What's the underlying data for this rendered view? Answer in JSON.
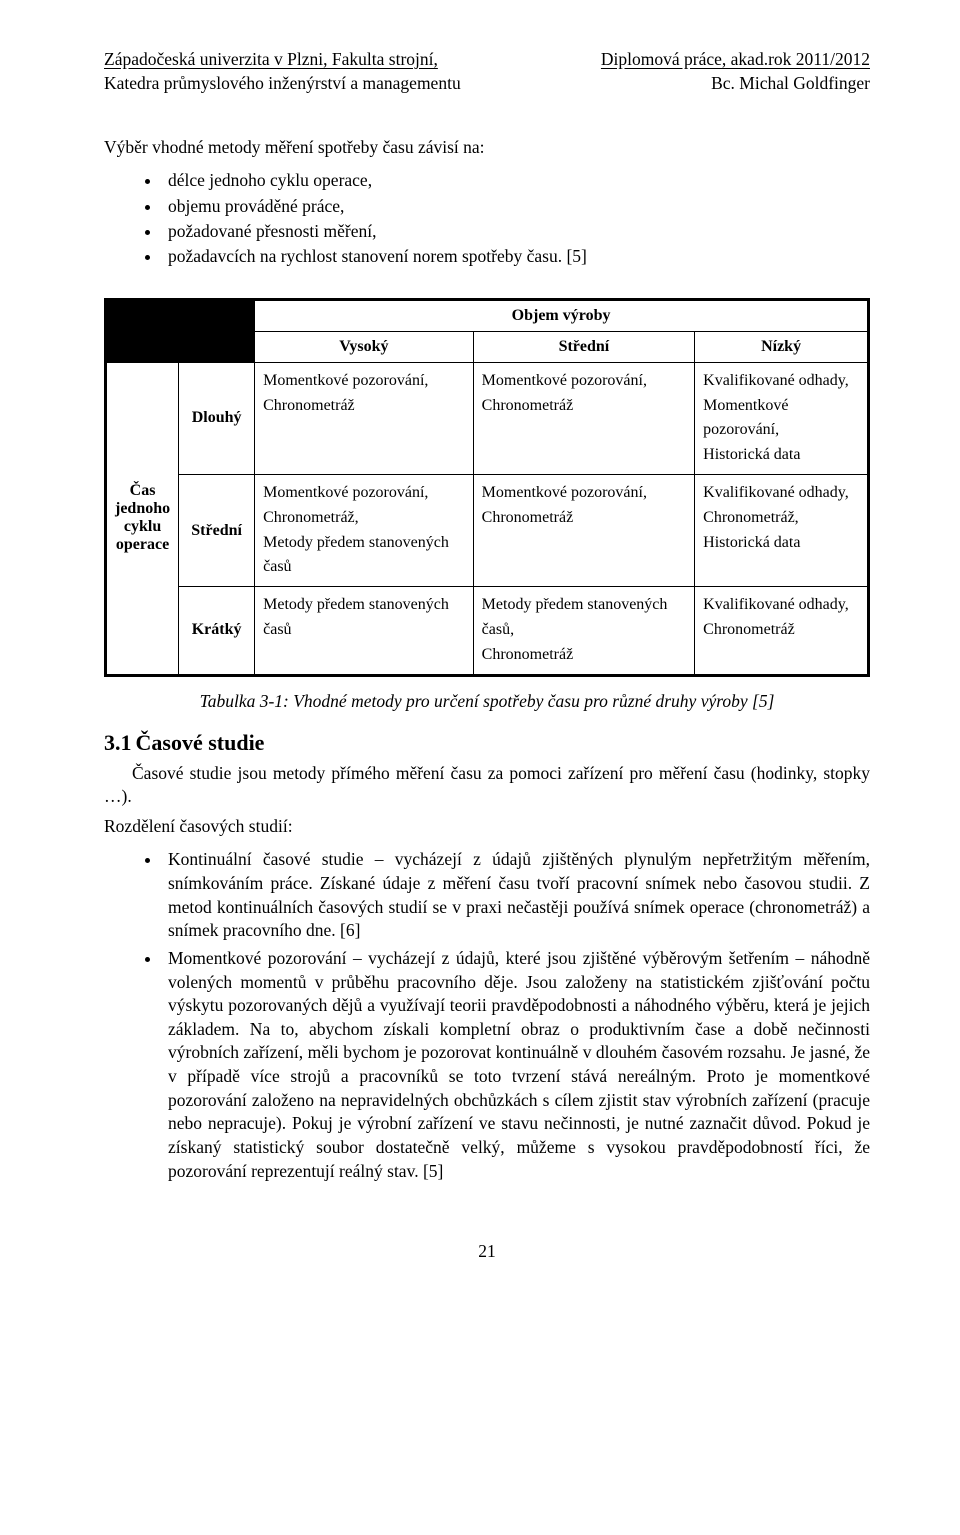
{
  "header": {
    "left1": "Západočeská univerzita v Plzni, Fakulta strojní,",
    "right1": "Diplomová práce, akad.rok 2011/2012",
    "left2": "Katedra průmyslového inženýrství a managementu",
    "right2": "Bc. Michal Goldfinger"
  },
  "intro": "Výběr vhodné metody měření spotřeby času závisí na:",
  "intro_bullets": [
    "délce jednoho cyklu operace,",
    "objemu prováděné práce,",
    "požadované přesnosti měření,",
    "požadavcích na rychlost stanovení norem spotřeby času. [5]"
  ],
  "table": {
    "super_header": "Objem výroby",
    "cols": [
      "Vysoký",
      "Střední",
      "Nízký"
    ],
    "row_super": "Čas jednoho cyklu operace",
    "rows": [
      {
        "label": "Dlouhý",
        "cells": [
          "Momentkové pozorování,\nChronometráž",
          "Momentkové pozorování,\nChronometráž",
          "Kvalifikované odhady,\nMomentkové pozorování,\nHistorická data"
        ]
      },
      {
        "label": "Střední",
        "cells": [
          "Momentkové pozorování,\nChronometráž,\nMetody předem stanovených časů",
          "Momentkové pozorování,\nChronometráž",
          "Kvalifikované odhady,\nChronometráž,\nHistorická data"
        ]
      },
      {
        "label": "Krátký",
        "cells": [
          "Metody předem stanovených časů",
          "Metody předem stanovených časů,\nChronometráž",
          "Kvalifikované odhady,\nChronometráž"
        ]
      }
    ]
  },
  "caption": "Tabulka 3-1: Vhodné metody pro určení spotřeby času pro různé druhy výroby [5]",
  "section": {
    "num": "3.1",
    "title": "Časové studie"
  },
  "p1": "Časové studie jsou metody přímého měření času za pomoci zařízení pro měření času (hodinky, stopky …).",
  "p2": "Rozdělení časových studií:",
  "studies": [
    "Kontinuální časové studie – vycházejí z údajů zjištěných plynulým nepřetržitým měřením, snímkováním práce. Získané údaje z měření času tvoří pracovní snímek nebo časovou studii. Z metod kontinuálních časových studií se v praxi nečastěji používá snímek operace (chronometráž) a snímek pracovního dne. [6]",
    "Momentkové pozorování – vycházejí z údajů, které jsou zjištěné výběrovým šetřením – náhodně volených momentů v průběhu pracovního děje. Jsou založeny na statistickém zjišťování počtu výskytu pozorovaných dějů a využívají teorii pravděpodobnosti a náhodného výběru, která je jejich základem. Na to, abychom získali kompletní obraz o produktivním čase a době nečinnosti výrobních zařízení, měli bychom je pozorovat kontinuálně v dlouhém časovém rozsahu. Je jasné, že v případě více strojů a pracovníků se toto tvrzení stává nereálným. Proto je momentkové pozorování založeno na nepravidelných obchůzkách s cílem zjistit stav výrobních zařízení (pracuje nebo nepracuje). Pokuj je výrobní zařízení ve stavu nečinnosti, je nutné zaznačit důvod. Pokud je získaný statistický soubor dostatečně velký, můžeme s vysokou pravděpodobností říci, že pozorování reprezentují reálný stav. [5]"
  ],
  "pagenum": "21"
}
